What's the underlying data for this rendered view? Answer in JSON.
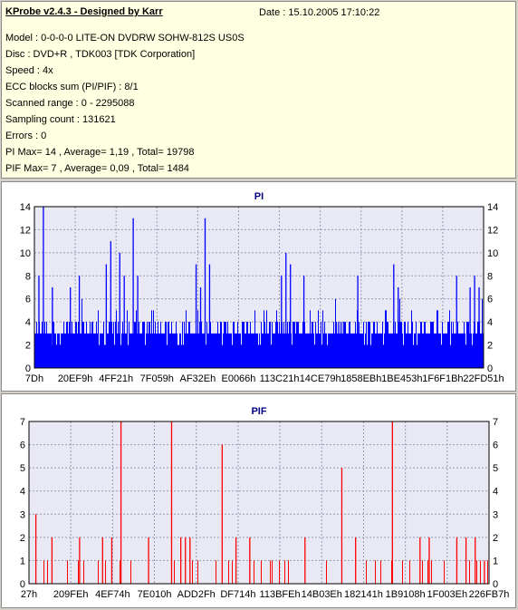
{
  "header": {
    "title": "KProbe v2.4.3 - Designed by Karr",
    "date": "Date : 15.10.2005 17:10:22",
    "lines": [
      "Model : 0-0-0-0 LITE-ON DVDRW SOHW-812S  US0S",
      "Disc : DVD+R , TDK003 [TDK Corporation]",
      "Speed : 4x",
      "ECC blocks sum (PI/PIF) : 8/1",
      "Scanned range : 0 - 2295088",
      "Sampling count : 131621",
      "Errors : 0",
      "PI Max= 14 , Average= 1,19 , Total= 19798",
      "PIF Max= 7 , Average= 0,09 , Total= 1484"
    ]
  },
  "colors": {
    "plot_bg": "#e9e9f5",
    "pi_bar": "#0000ff",
    "pif_bar": "#ff0000",
    "pi_title": "#000080",
    "pif_title": "#000080"
  },
  "chart_data": [
    {
      "type": "bar",
      "title": "PI",
      "ylim": [
        0,
        14
      ],
      "yticks": [
        "0",
        "2",
        "4",
        "6",
        "8",
        "10",
        "12",
        "14"
      ],
      "xticks": [
        "7Dh",
        "20EF9h",
        "4FF21h",
        "7F059h",
        "AF32Eh",
        "E0066h",
        "113C21h",
        "14CE79h",
        "1858EBh",
        "1BE453h",
        "1F6F1Bh",
        "22FD51h"
      ],
      "grid": true,
      "baseline": 3,
      "max": 14,
      "spikes": [
        [
          0.02,
          14
        ],
        [
          0.01,
          8
        ],
        [
          0.04,
          7
        ],
        [
          0.08,
          7
        ],
        [
          0.1,
          8
        ],
        [
          0.2,
          8
        ],
        [
          0.16,
          9
        ],
        [
          0.17,
          11
        ],
        [
          0.19,
          10
        ],
        [
          0.22,
          13
        ],
        [
          0.23,
          8
        ],
        [
          0.36,
          9
        ],
        [
          0.37,
          7
        ],
        [
          0.38,
          13
        ],
        [
          0.39,
          9
        ],
        [
          0.55,
          8
        ],
        [
          0.56,
          10
        ],
        [
          0.57,
          9
        ],
        [
          0.6,
          8
        ],
        [
          0.72,
          8
        ],
        [
          0.8,
          9
        ],
        [
          0.81,
          7
        ],
        [
          0.94,
          8
        ],
        [
          0.98,
          8
        ],
        [
          0.97,
          7
        ],
        [
          0.99,
          7
        ]
      ]
    },
    {
      "type": "bar",
      "title": "PIF",
      "ylim": [
        0,
        7
      ],
      "yticks": [
        "0",
        "1",
        "2",
        "3",
        "4",
        "5",
        "6",
        "7"
      ],
      "xticks": [
        "27h",
        "209FEh",
        "4EF74h",
        "7E010h",
        "ADD2Fh",
        "DF714h",
        "113BFEh",
        "14B03Eh",
        "182141h",
        "1B9108h",
        "1F003Eh",
        "226FB7h"
      ],
      "grid": true,
      "max": 7,
      "spikes": [
        [
          0.015,
          3
        ],
        [
          0.2,
          7
        ],
        [
          0.31,
          7
        ],
        [
          0.42,
          6
        ],
        [
          0.68,
          5
        ],
        [
          0.79,
          7
        ],
        [
          0.16,
          2
        ],
        [
          0.18,
          2
        ],
        [
          0.33,
          2
        ],
        [
          0.34,
          2
        ],
        [
          0.35,
          2
        ],
        [
          0.05,
          2
        ],
        [
          0.11,
          2
        ],
        [
          0.26,
          2
        ],
        [
          0.45,
          2
        ],
        [
          0.48,
          2
        ],
        [
          0.6,
          2
        ],
        [
          0.71,
          2
        ],
        [
          0.85,
          2
        ],
        [
          0.87,
          2
        ],
        [
          0.93,
          2
        ],
        [
          0.95,
          2
        ],
        [
          0.97,
          2
        ],
        [
          0.99,
          1
        ]
      ]
    }
  ]
}
